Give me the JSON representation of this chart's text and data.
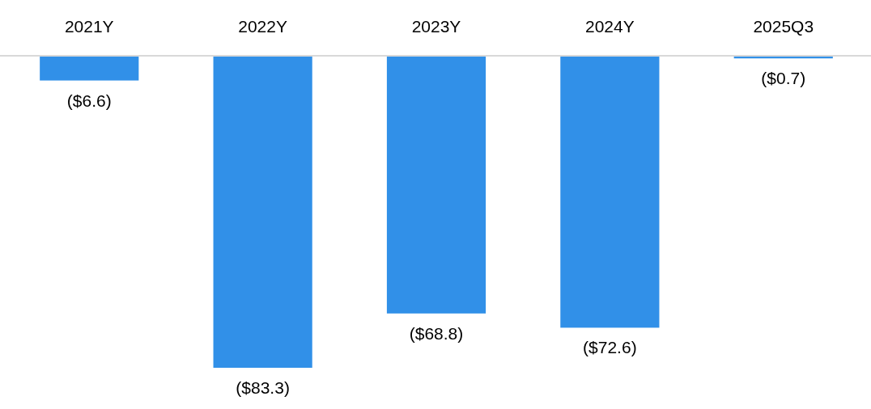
{
  "chart_data": {
    "type": "bar",
    "categories": [
      "2021Y",
      "2022Y",
      "2023Y",
      "2024Y",
      "2025Q3"
    ],
    "values": [
      -6.6,
      -83.3,
      -68.8,
      -72.6,
      -0.7
    ],
    "value_labels": [
      "($6.6)",
      "($83.3)",
      "($68.8)",
      "($72.6)",
      "($0.7)"
    ],
    "color": "#3190e8"
  }
}
